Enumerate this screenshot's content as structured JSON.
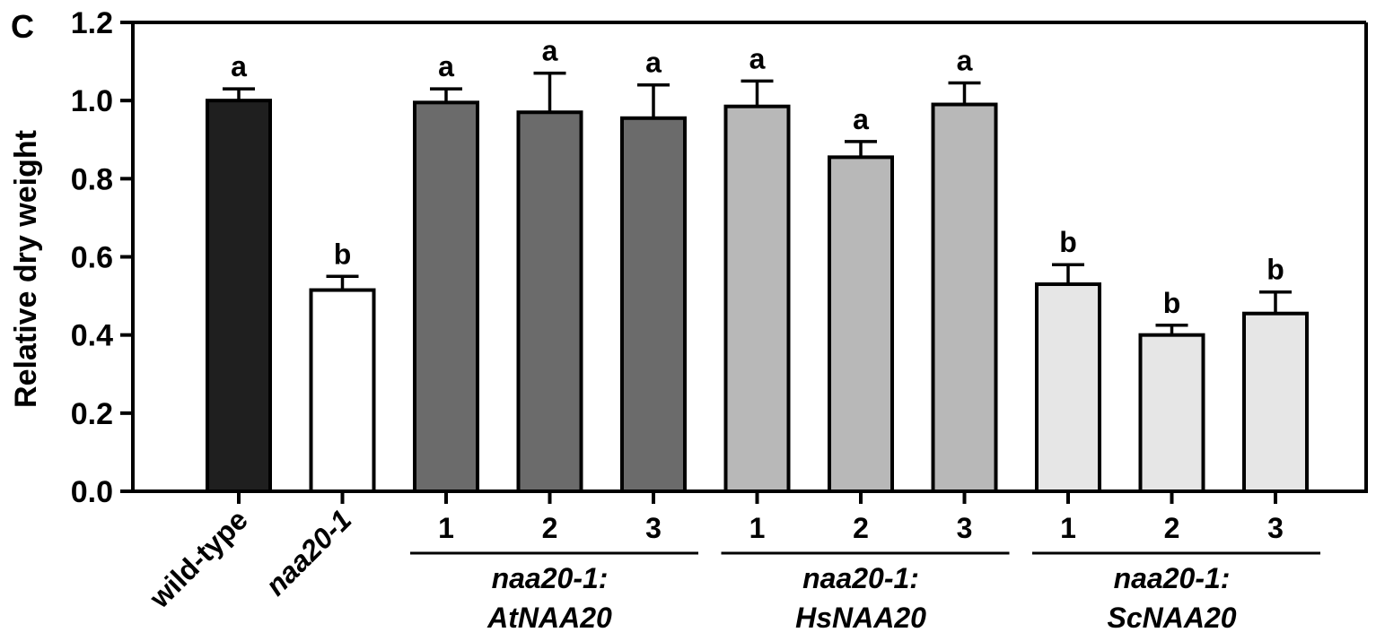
{
  "panel_label": "C",
  "chart_data": {
    "type": "bar",
    "title": "",
    "xlabel": "",
    "ylabel": "Relative dry weight",
    "ylim": [
      0,
      1.2
    ],
    "yticks": [
      "0.0",
      "0.2",
      "0.4",
      "0.6",
      "0.8",
      "1.0",
      "1.2"
    ],
    "grid": false,
    "categories": [
      "wild-type",
      "naa20-1",
      "1",
      "2",
      "3",
      "1",
      "2",
      "3",
      "1",
      "2",
      "3"
    ],
    "values": [
      1.0,
      0.515,
      0.995,
      0.97,
      0.955,
      0.985,
      0.855,
      0.99,
      0.53,
      0.4,
      0.455
    ],
    "errors": [
      0.03,
      0.035,
      0.035,
      0.1,
      0.085,
      0.065,
      0.04,
      0.055,
      0.05,
      0.025,
      0.055
    ],
    "significance": [
      "a",
      "b",
      "a",
      "a",
      "a",
      "a",
      "a",
      "a",
      "b",
      "b",
      "b"
    ],
    "bar_colors": [
      "#1f1f1f",
      "#ffffff",
      "#6b6b6b",
      "#6b6b6b",
      "#6b6b6b",
      "#b8b8b8",
      "#b8b8b8",
      "#b8b8b8",
      "#e6e6e6",
      "#e6e6e6",
      "#e6e6e6"
    ],
    "groups": [
      {
        "line1": "naa20-1:",
        "line2": "AtNAA20",
        "bars": [
          2,
          4
        ]
      },
      {
        "line1": "naa20-1:",
        "line2": "HsNAA20",
        "bars": [
          5,
          7
        ]
      },
      {
        "line1": "naa20-1:",
        "line2": "ScNAA20",
        "bars": [
          8,
          10
        ]
      }
    ],
    "rotated_labels": [
      0,
      1
    ]
  }
}
